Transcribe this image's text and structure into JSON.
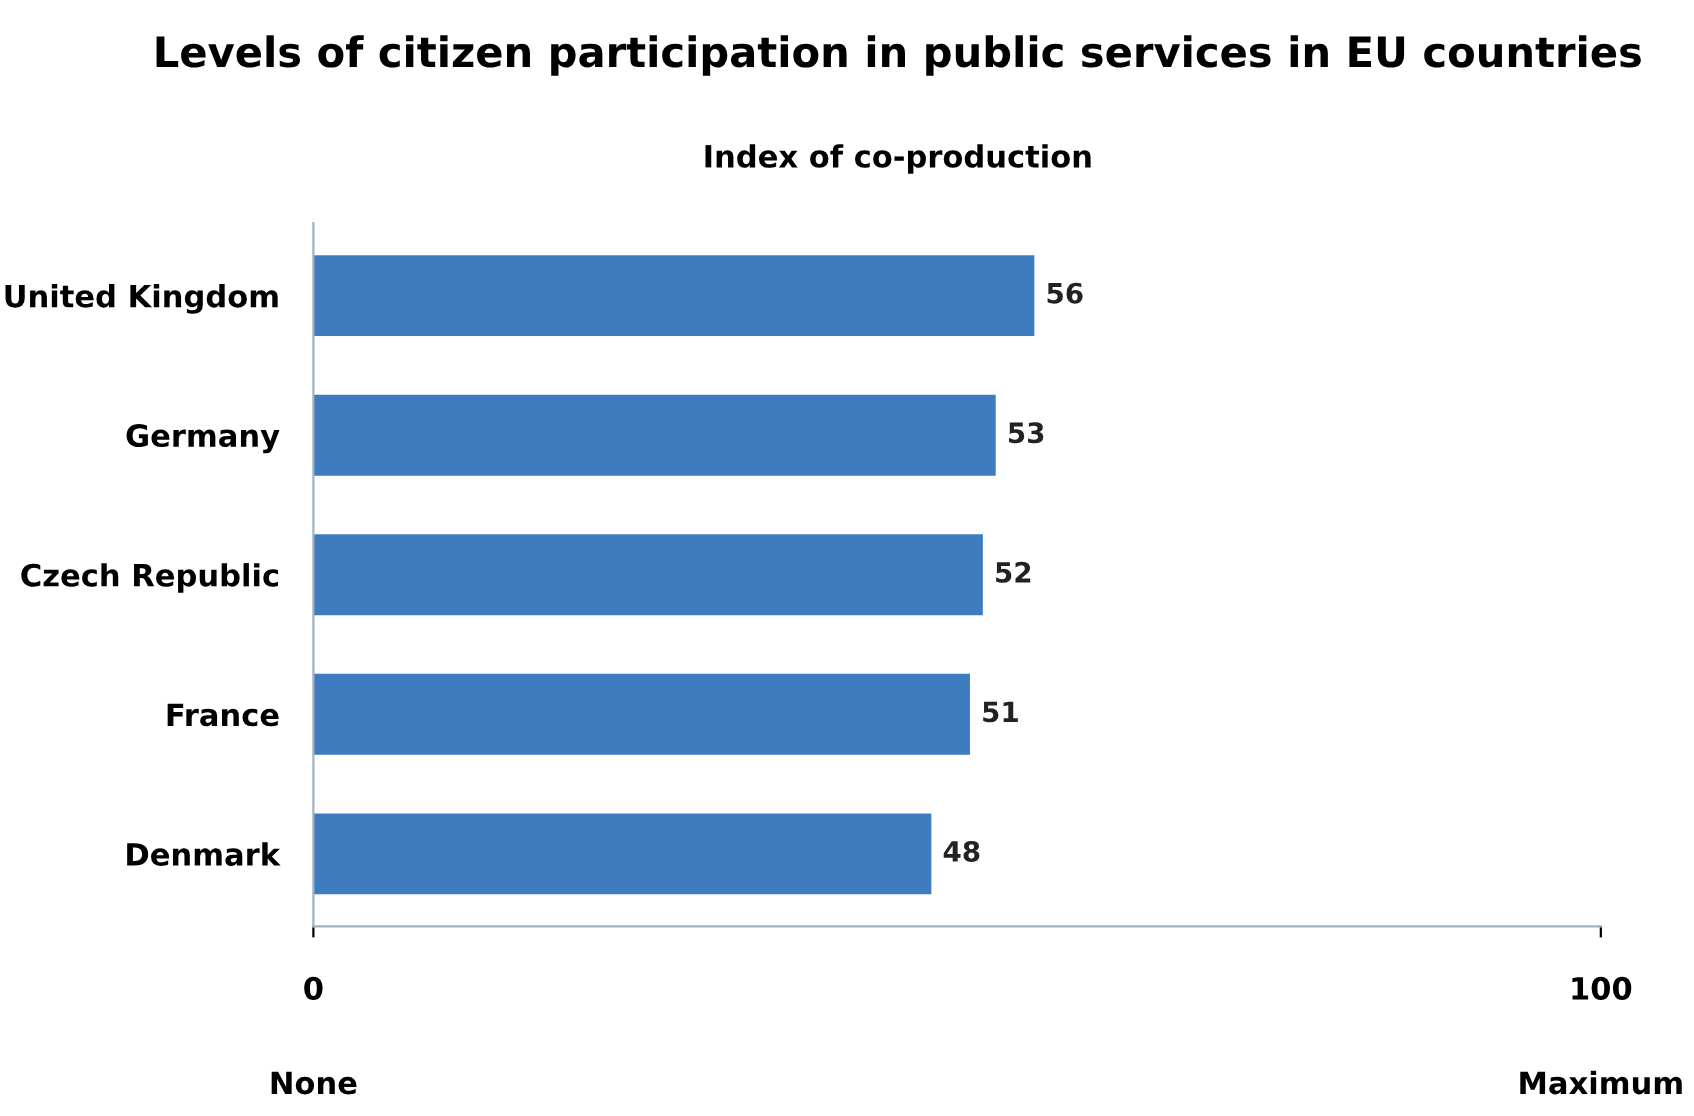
{
  "chart_data": {
    "type": "bar",
    "orientation": "horizontal",
    "title": "Levels of citizen participation in public services in EU countries",
    "subtitle": "Index of co-production",
    "categories": [
      "United Kingdom",
      "Germany",
      "Czech Republic",
      "France",
      "Denmark"
    ],
    "values": [
      56,
      53,
      52,
      51,
      48
    ],
    "color": "#3f7cbf",
    "data_labels": true,
    "xlim": [
      0,
      100
    ],
    "xticks": [
      0,
      100
    ],
    "grid": false,
    "legend": false,
    "annotations": [
      "None",
      "Maximum"
    ]
  }
}
